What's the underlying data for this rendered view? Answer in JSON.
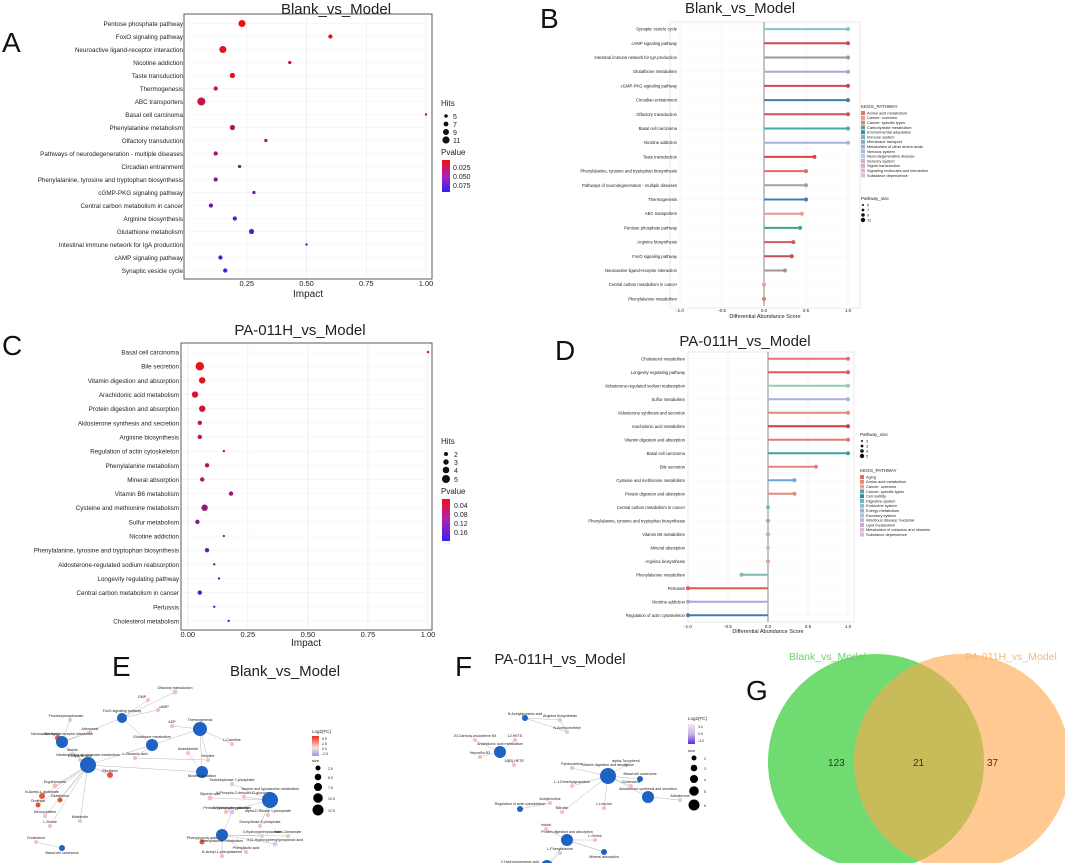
{
  "panels": {
    "A": {
      "label": "A",
      "title": "Blank_vs_Model",
      "xlabel": "Impact",
      "xlim": [
        0,
        1.0
      ],
      "ticks": [
        "0.25",
        "0.50",
        "0.75",
        "1.00"
      ],
      "tickvals": [
        0.25,
        0.5,
        0.75,
        1.0
      ],
      "size_legend": {
        "title": "Hits",
        "items": [
          "5",
          "7",
          "9",
          "11"
        ]
      },
      "color_legend": {
        "title": "Pvalue",
        "items": [
          "0.025",
          "0.050",
          "0.075"
        ]
      }
    },
    "B": {
      "label": "B",
      "title": "Blank_vs_Model",
      "xlabel": "Differential Abundance Score",
      "ticks": [
        "-1.0",
        "-0.5",
        "0.0",
        "0.5",
        "1.0"
      ],
      "tickvals": [
        -1,
        -0.5,
        0,
        0.5,
        1
      ],
      "color_legend_title": "KEGG_PATHWAY",
      "color_legend": [
        "Amino acid metabolism",
        "Cancer: overview",
        "Cancer: specific types",
        "Carbohydrate metabolism",
        "Environmental adaptation",
        "Immune system",
        "Membrane transport",
        "Metabolism of other amino acids",
        "Nervous system",
        "Neurodegenerative disease",
        "Sensory system",
        "Signal transduction",
        "Signaling molecules and interaction",
        "Substance dependence"
      ],
      "color_legend_colors": [
        "#e57373",
        "#ec9a88",
        "#d98a7a",
        "#4aa99c",
        "#3f8aa0",
        "#6fb7c8",
        "#8aa8c8",
        "#9bb0d4",
        "#a9b9e0",
        "#b7c2e4",
        "#c9b2d8",
        "#d9a6c8",
        "#e7b4cc",
        "#cfc0e6"
      ],
      "size_legend_title": "Pathway_size",
      "size_legend": [
        "5",
        "7",
        "9",
        "11"
      ]
    },
    "C": {
      "label": "C",
      "title": "PA-011H_vs_Model",
      "xlabel": "Impact",
      "ticks": [
        "0.00",
        "0.25",
        "0.50",
        "0.75",
        "1.00"
      ],
      "tickvals": [
        0,
        0.25,
        0.5,
        0.75,
        1.0
      ],
      "size_legend": {
        "title": "Hits",
        "items": [
          "2",
          "3",
          "4",
          "5"
        ]
      },
      "color_legend": {
        "title": "Pvalue",
        "items": [
          "0.04",
          "0.08",
          "0.12",
          "0.16"
        ]
      }
    },
    "D": {
      "label": "D",
      "title": "PA-011H_vs_Model",
      "xlabel": "Differential Abundance Score",
      "ticks": [
        "-1.0",
        "-0.5",
        "0.0",
        "0.5",
        "1.0"
      ],
      "tickvals": [
        -1,
        -0.5,
        0,
        0.5,
        1
      ],
      "size_legend_title": "Pathway_size",
      "size_legend": [
        "2",
        "3",
        "4",
        "5"
      ],
      "color_legend_title": "KEGG_PATHWAY",
      "color_legend": [
        "Aging",
        "Amino acid metabolism",
        "Cancer: overview",
        "Cancer: specific types",
        "Cell motility",
        "Digestive system",
        "Endocrine system",
        "Energy metabolism",
        "Excretory system",
        "Infectious disease: bacterial",
        "Lipid metabolism",
        "Metabolism of cofactors and vitamins",
        "Substance dependence"
      ],
      "color_legend_colors": [
        "#e06b6b",
        "#e88a7a",
        "#ee9f8e",
        "#4fa7a0",
        "#3b86a0",
        "#6db6c2",
        "#8ac3cf",
        "#9fb3d6",
        "#b0bde2",
        "#c6b3da",
        "#d8a8c8",
        "#e6b8cc",
        "#cdbfe4"
      ]
    },
    "E": {
      "label": "E",
      "title": "Blank_vs_Model",
      "legend_title": "Log2(FC)",
      "legend_ticks": [
        "5.0",
        "2.5",
        "0.0",
        "-2.5"
      ],
      "size_title": "size",
      "size_items": [
        "2.5",
        "5.0",
        "7.5",
        "10.0",
        "12.5"
      ],
      "nodes": [
        "Olfactory transduction",
        "GMP",
        "cAMP",
        "FoxO signaling pathway",
        "Fructosephosphonate",
        "Melatonin",
        "Adenosine",
        "Neuroactive ligand-receptor interaction",
        "Taurine",
        "L-Aspartic acid",
        "Nicotinate and nicotinamide metabolism",
        "Glutathione metabolism",
        "L-Glutamic acid",
        "Nicotine",
        "L-Carnitine",
        "ADP",
        "Thermogenesis",
        "Anandamide",
        "Nicotine addiction",
        "Sedoheptulose 7-phosphate",
        "Glyceric acid",
        "6-Phospho-2-dehydro-D-gluconate",
        "Pentose phosphate pathway",
        "Taurine and hypotaurine metabolism",
        "alpha-D-Ribose 1-phosphate",
        "Deoxyribose 5-phosphate",
        "Ergothioneine",
        "N-Acetyl-L-glutamate",
        "Glutathione",
        "Ornithine",
        "Riboflavin",
        "Deoxycytidine",
        "L-Serine",
        "Maleimide",
        "Cholesterol",
        "Basal cell carcinoma",
        "2-Hydroxyphenylacetate",
        "3-Hydroxyphenylacetate",
        "Phenylpyruvic acid",
        "Phenylalanine metabolism",
        "3-(2-Hydroxyphenyl)propanoic acid",
        "N-Acetyl-L-phenylalanine",
        "trans-Cinnamate",
        "Phenyllactic acid"
      ]
    },
    "F": {
      "label": "F",
      "title": "PA-011H_vs_Model",
      "legend_title": "Log2(FC)",
      "legend_ticks": [
        "3.0",
        "0.0",
        "-3.0"
      ],
      "size_title": "size",
      "size_items": [
        "2",
        "3",
        "4",
        "5",
        "6"
      ],
      "nodes": [
        "N-Acetylglutamic acid",
        "Arginine biosynthesis",
        "N-Acetylornithine",
        "20-Carboxy-leukotriene B4",
        "12-HETE",
        "Arachidonic acid metabolism",
        "Hepoxilin B3",
        "14(R)-HETE",
        "Pyridoxamine",
        "alpha-Tocopherol",
        "Vitamin digestion and absorption",
        "Basal cell carcinoma",
        "Cholesterol",
        "L-1-Dimethylguanidine",
        "Aldosterone synthesis and secretion",
        "Aldosterone",
        "Acetylcholine",
        "Regulation of actin cytoskeleton",
        "Bilirubin",
        "L-Leucine",
        "Indole",
        "Protein digestion and absorption",
        "L-Serine",
        "Mineral absorption",
        "L-Phenylalanine",
        "2-Hydroxycinnamic acid",
        "Phenylalanine metabolism",
        "2-Phenylacetamide"
      ]
    },
    "G": {
      "label": "G",
      "set1": "Blank_vs_Model",
      "set2": "PA-011H_vs_Model",
      "only1": "123",
      "both": "21",
      "only2": "37"
    }
  },
  "chart_data": [
    {
      "type": "scatter",
      "title": "Blank_vs_Model",
      "xlabel": "Impact",
      "ylabel": "",
      "xlim": [
        0,
        1.0
      ],
      "categories": [
        "Pentose phosphate pathway",
        "FoxO signaling pathway",
        "Neuroactive ligand-receptor interaction",
        "Nicotine addiction",
        "Taste transduction",
        "Thermogenesis",
        "ABC transporters",
        "Basal cell carcinoma",
        "Phenylalanine metabolism",
        "Olfactory transduction",
        "Pathways of neurodegeneration - multiple diseases",
        "Circadian entrainment",
        "Phenylalanine, tyrosine and tryptophan biosynthesis",
        "cGMP-PKG signaling pathway",
        "Central carbon metabolism in cancer",
        "Arginine biosynthesis",
        "Glutathione metabolism",
        "Intestinal immune network for IgA production",
        "cAMP signaling pathway",
        "Synaptic vesicle cycle"
      ],
      "impact": [
        0.23,
        0.6,
        0.15,
        0.43,
        0.19,
        0.12,
        0.06,
        1.0,
        0.19,
        0.33,
        0.12,
        0.22,
        0.12,
        0.28,
        0.1,
        0.2,
        0.27,
        0.5,
        0.14,
        0.16
      ],
      "hits": [
        10,
        7,
        10,
        6,
        8,
        7,
        11,
        5,
        8,
        6,
        7,
        6,
        7,
        6,
        7,
        7,
        8,
        5,
        7,
        7
      ],
      "pvalue": [
        0.005,
        0.008,
        0.01,
        0.012,
        0.015,
        0.02,
        0.022,
        0.025,
        0.03,
        0.035,
        0.04,
        0.045,
        0.05,
        0.055,
        0.06,
        0.065,
        0.07,
        0.072,
        0.078,
        0.08
      ]
    },
    {
      "type": "lollipop",
      "title": "Blank_vs_Model",
      "xlabel": "Differential Abundance Score",
      "xlim": [
        -1.0,
        1.0
      ],
      "categories": [
        "Synaptic vesicle cycle",
        "cAMP signaling pathway",
        "Intestinal immune network for IgA production",
        "Glutathione metabolism",
        "cGMP-PKG signaling pathway",
        "Circadian entrainment",
        "Olfactory transduction",
        "Basal cell carcinoma",
        "Nicotine addiction",
        "Taste transduction",
        "Phenylalanine, tyrosine and tryptophan biosynthesis",
        "Pathways of neurodegeneration - multiple diseases",
        "Thermogenesis",
        "ABC transporters",
        "Pentose phosphate pathway",
        "Arginine biosynthesis",
        "FoxO signaling pathway",
        "Neuroactive ligand-receptor interaction",
        "Central carbon metabolism in cancer",
        "Phenylalanine metabolism"
      ],
      "values": [
        1.0,
        1.0,
        1.0,
        1.0,
        1.0,
        1.0,
        1.0,
        1.0,
        1.0,
        0.6,
        0.5,
        0.5,
        0.5,
        0.45,
        0.43,
        0.35,
        0.33,
        0.25,
        0.0,
        0.0
      ],
      "colors": [
        "#7fc6c0",
        "#d44a4a",
        "#9a9a9a",
        "#a3a8d8",
        "#c94b4b",
        "#3f7fa6",
        "#c85656",
        "#4aa9a4",
        "#a7b1d8",
        "#d94343",
        "#e46a6a",
        "#9fa2a6",
        "#3f7fb8",
        "#e99a86",
        "#3aa97a",
        "#d25b5b",
        "#c44e4e",
        "#a09595",
        "#e7a0a0",
        "#e77a6a"
      ]
    },
    {
      "type": "scatter",
      "title": "PA-011H_vs_Model",
      "xlabel": "Impact",
      "xlim": [
        0,
        1.0
      ],
      "categories": [
        "Basal cell carcinoma",
        "Bile secretion",
        "Vitamin digestion and absorption",
        "Arachidonic acid metabolism",
        "Protein digestion and absorption",
        "Aldosterone synthesis and secretion",
        "Arginine biosynthesis",
        "Regulation of actin cytoskeleton",
        "Phenylalanine metabolism",
        "Mineral absorption",
        "Vitamin B6 metabolism",
        "Cysteine and methionine metabolism",
        "Sulfur metabolism",
        "Nicotine addiction",
        "Phenylalanine, tyrosine and tryptophan biosynthesis",
        "Aldosterone-regulated sodium reabsorption",
        "Longevity regulating pathway",
        "Central carbon metabolism in cancer",
        "Pertussis",
        "Cholesterol metabolism"
      ],
      "impact": [
        1.0,
        0.05,
        0.06,
        0.03,
        0.06,
        0.05,
        0.05,
        0.15,
        0.08,
        0.06,
        0.18,
        0.07,
        0.04,
        0.15,
        0.08,
        0.11,
        0.13,
        0.05,
        0.11,
        0.17
      ],
      "hits": [
        2,
        5,
        4,
        4,
        4,
        3,
        3,
        2,
        3,
        3,
        3,
        4,
        3,
        2,
        3,
        2,
        2,
        3,
        2,
        2
      ],
      "pvalue": [
        0.005,
        0.01,
        0.015,
        0.02,
        0.03,
        0.035,
        0.04,
        0.045,
        0.055,
        0.06,
        0.07,
        0.08,
        0.09,
        0.1,
        0.11,
        0.12,
        0.13,
        0.14,
        0.15,
        0.16
      ]
    },
    {
      "type": "lollipop",
      "title": "PA-011H_vs_Model",
      "xlabel": "Differential Abundance Score",
      "xlim": [
        -1.0,
        1.0
      ],
      "categories": [
        "Cholesterol metabolism",
        "Longevity regulating pathway",
        "Aldosterone-regulated sodium reabsorption",
        "Sulfur metabolism",
        "Aldosterone synthesis and secretion",
        "Arachidonic acid metabolism",
        "Vitamin digestion and absorption",
        "Basal cell carcinoma",
        "Bile secretion",
        "Cysteine and methionine metabolism",
        "Protein digestion and absorption",
        "Central carbon metabolism in cancer",
        "Phenylalanine, tyrosine and tryptophan biosynthesis",
        "Vitamin B6 metabolism",
        "Mineral absorption",
        "Arginine biosynthesis",
        "Phenylalanine metabolism",
        "Pertussis",
        "Nicotine addiction",
        "Regulation of actin cytoskeleton"
      ],
      "values": [
        1.0,
        1.0,
        1.0,
        1.0,
        1.0,
        1.0,
        1.0,
        1.0,
        0.6,
        0.33,
        0.33,
        0.0,
        0.0,
        0.0,
        0.0,
        0.0,
        -0.33,
        -1.0,
        -1.0,
        -1.0
      ],
      "colors": [
        "#e77070",
        "#e05858",
        "#8fcfb0",
        "#a6b1dc",
        "#e38a80",
        "#c94040",
        "#e27b6c",
        "#3aa3a0",
        "#e0867a",
        "#6fa6d8",
        "#e58b7c",
        "#6fc4a4",
        "#8fa8d6",
        "#a5b2dc",
        "#c8b8dc",
        "#e0a0a0",
        "#7fb8b0",
        "#e05a4a",
        "#a6a9de",
        "#4a78b6"
      ]
    },
    {
      "type": "table",
      "title": "Venn diagram",
      "categories": [
        "Blank_vs_Model only",
        "Shared",
        "PA-011H_vs_Model only"
      ],
      "values": [
        123,
        21,
        37
      ]
    }
  ]
}
